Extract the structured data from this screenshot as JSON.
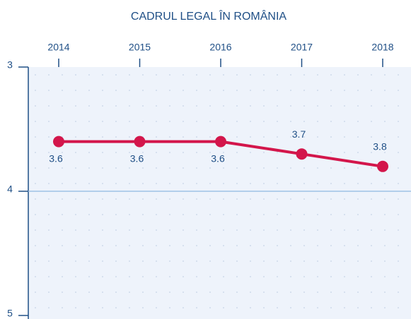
{
  "chart_data": {
    "type": "line",
    "title": "CADRUL LEGAL ÎN ROMÂNIA",
    "categories": [
      "2014",
      "2015",
      "2016",
      "2017",
      "2018"
    ],
    "values": [
      3.6,
      3.6,
      3.6,
      3.7,
      3.8
    ],
    "color": "#d3164b",
    "ylim": [
      5,
      3
    ],
    "yticks": [
      3,
      4,
      5
    ],
    "grid": true
  }
}
